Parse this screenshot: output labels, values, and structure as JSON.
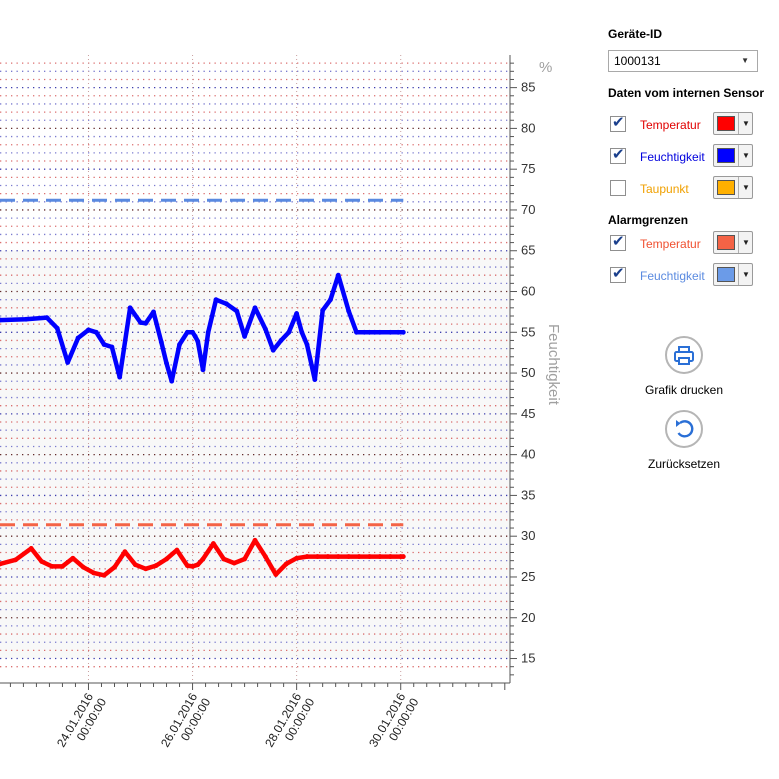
{
  "panel": {
    "device_heading": "Geräte-ID",
    "device_id": "1000131",
    "sensor_heading": "Daten vom internen Sensor",
    "alarm_heading": "Alarmgrenzen",
    "sensor_series": [
      {
        "label": "Temperatur",
        "checked": true,
        "color": "#ff0000",
        "text_color": "#e00000"
      },
      {
        "label": "Feuchtigkeit",
        "checked": true,
        "color": "#0000ff",
        "text_color": "#0000dd"
      },
      {
        "label": "Taupunkt",
        "checked": false,
        "color": "#ffb000",
        "text_color": "#f0a000"
      }
    ],
    "alarm_series": [
      {
        "label": "Temperatur",
        "checked": true,
        "color": "#f46346",
        "text_color": "#f05030"
      },
      {
        "label": "Feuchtigkeit",
        "checked": true,
        "color": "#6b9be8",
        "text_color": "#5a8ae0"
      }
    ],
    "print_label": "Grafik drucken",
    "reset_label": "Zurücksetzen"
  },
  "icons": {
    "print": "printer-icon",
    "reset": "undo-icon",
    "check": "checkmark-icon",
    "dropdown": "caret-down-icon"
  },
  "chart_data": {
    "type": "line",
    "y_unit": "%",
    "ylabel": "Feuchtigkeit",
    "ylim": [
      12,
      89
    ],
    "y_ticks": [
      15,
      20,
      25,
      30,
      35,
      40,
      45,
      50,
      55,
      60,
      65,
      70,
      75,
      80,
      85
    ],
    "xlim": [
      -1.7,
      8.1
    ],
    "x_ticks": [
      {
        "value": 0,
        "date": "24.01.2016",
        "time": "00:00:00"
      },
      {
        "value": 2,
        "date": "26.01.2016",
        "time": "00:00:00"
      },
      {
        "value": 4,
        "date": "28.01.2016",
        "time": "00:00:00"
      },
      {
        "value": 6,
        "date": "30.01.2016",
        "time": "00:00:00"
      }
    ],
    "grid": true,
    "series": [
      {
        "name": "Feuchtigkeit",
        "color": "#0000ff",
        "x": [
          -1.7,
          -1.2,
          -0.8,
          -0.6,
          -0.4,
          -0.2,
          0.0,
          0.15,
          0.3,
          0.45,
          0.6,
          0.8,
          1.0,
          1.1,
          1.25,
          1.4,
          1.5,
          1.6,
          1.75,
          1.9,
          2.0,
          2.05,
          2.1,
          2.2,
          2.3,
          2.45,
          2.65,
          2.85,
          3.0,
          3.2,
          3.4,
          3.55,
          3.7,
          3.85,
          4.0,
          4.1,
          4.2,
          4.35,
          4.5,
          4.65,
          4.8,
          5.0,
          5.15,
          5.3,
          5.4,
          5.5,
          5.6,
          5.8,
          5.95,
          6.05
        ],
        "y": [
          56.5,
          56.6,
          56.8,
          55.5,
          51.3,
          54.3,
          55.3,
          55.0,
          53.5,
          53.2,
          49.5,
          58.0,
          56.2,
          56.1,
          57.5,
          53.8,
          51.2,
          49.0,
          53.5,
          55.0,
          55.0,
          54.5,
          53.9,
          50.4,
          55.0,
          59.0,
          58.5,
          57.6,
          54.5,
          58.0,
          55.4,
          52.8,
          54.0,
          55.0,
          57.3,
          55.0,
          53.5,
          49.2,
          57.7,
          59.0,
          62.0,
          57.6,
          55.0,
          55.0,
          55.0,
          55.0,
          55.0,
          55.0,
          55.0,
          55.0
        ]
      },
      {
        "name": "Temperatur",
        "color": "#ff0000",
        "x": [
          -1.7,
          -1.4,
          -1.1,
          -0.9,
          -0.7,
          -0.5,
          -0.3,
          -0.1,
          0.1,
          0.3,
          0.5,
          0.7,
          0.9,
          1.1,
          1.3,
          1.5,
          1.7,
          1.9,
          2.0,
          2.1,
          2.2,
          2.4,
          2.6,
          2.8,
          3.0,
          3.2,
          3.4,
          3.6,
          3.8,
          4.0,
          4.2,
          4.4,
          4.6,
          4.8,
          5.0,
          5.2,
          5.4,
          5.6,
          5.8,
          6.0,
          6.05
        ],
        "y": [
          26.6,
          27.1,
          28.5,
          26.9,
          26.3,
          26.3,
          27.3,
          26.2,
          25.5,
          25.2,
          26.2,
          28.1,
          26.5,
          26.0,
          26.4,
          27.2,
          28.3,
          26.4,
          26.3,
          26.5,
          27.2,
          29.1,
          27.2,
          26.7,
          27.2,
          29.5,
          27.5,
          25.3,
          26.6,
          27.3,
          27.5,
          27.5,
          27.5,
          27.5,
          27.5,
          27.5,
          27.5,
          27.5,
          27.5,
          27.5,
          27.5
        ]
      },
      {
        "name": "Alarm Feuchtigkeit",
        "color": "#5a8ae0",
        "dash": true,
        "x": [
          -1.7,
          6.05
        ],
        "y": [
          71.2,
          71.2
        ]
      },
      {
        "name": "Alarm Temperatur",
        "color": "#f46346",
        "dash": true,
        "x": [
          -1.7,
          6.05
        ],
        "y": [
          31.4,
          31.4
        ]
      }
    ]
  }
}
